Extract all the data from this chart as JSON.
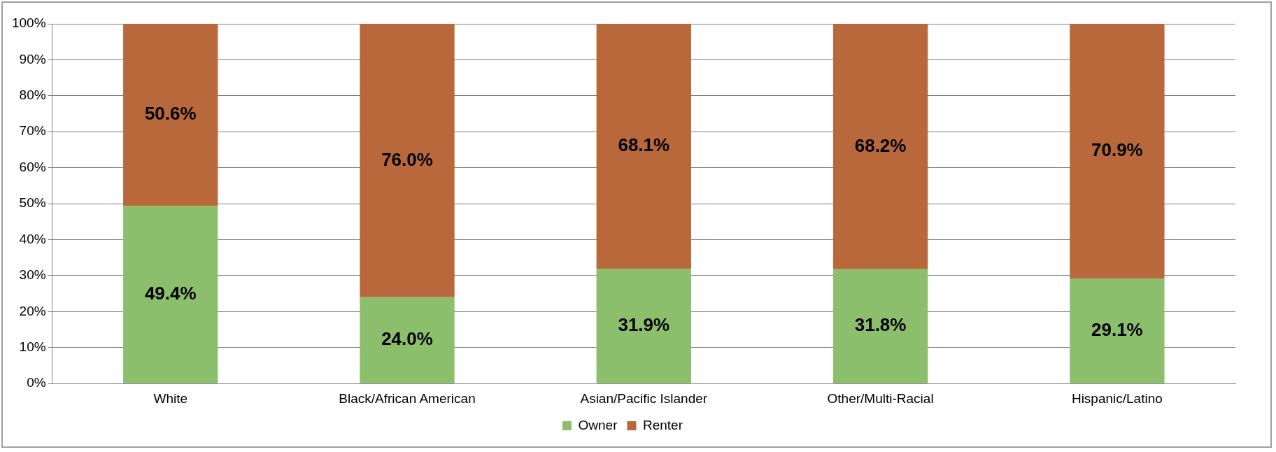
{
  "chart_data": {
    "type": "bar",
    "stacked": true,
    "categories": [
      "White",
      "Black/African American",
      "Asian/Pacific Islander",
      "Other/Multi-Racial",
      "Hispanic/Latino"
    ],
    "series": [
      {
        "name": "Owner",
        "color": "#8cbf6c",
        "values": [
          49.4,
          24.0,
          31.9,
          31.8,
          29.1
        ],
        "value_labels": [
          "49.4%",
          "24.0%",
          "31.9%",
          "31.8%",
          "29.1%"
        ]
      },
      {
        "name": "Renter",
        "color": "#b8683a",
        "values": [
          50.6,
          76.0,
          68.1,
          68.2,
          70.9
        ],
        "value_labels": [
          "50.6%",
          "76.0%",
          "68.1%",
          "68.2%",
          "70.9%"
        ]
      }
    ],
    "ylim": [
      0,
      100
    ],
    "yticks": [
      {
        "value": 0,
        "label": "0%"
      },
      {
        "value": 10,
        "label": "10%"
      },
      {
        "value": 20,
        "label": "20%"
      },
      {
        "value": 30,
        "label": "30%"
      },
      {
        "value": 40,
        "label": "40%"
      },
      {
        "value": 50,
        "label": "50%"
      },
      {
        "value": 60,
        "label": "60%"
      },
      {
        "value": 70,
        "label": "70%"
      },
      {
        "value": 80,
        "label": "80%"
      },
      {
        "value": 90,
        "label": "90%"
      },
      {
        "value": 100,
        "label": "100%"
      }
    ],
    "grid": "y",
    "legend": "bottom"
  }
}
